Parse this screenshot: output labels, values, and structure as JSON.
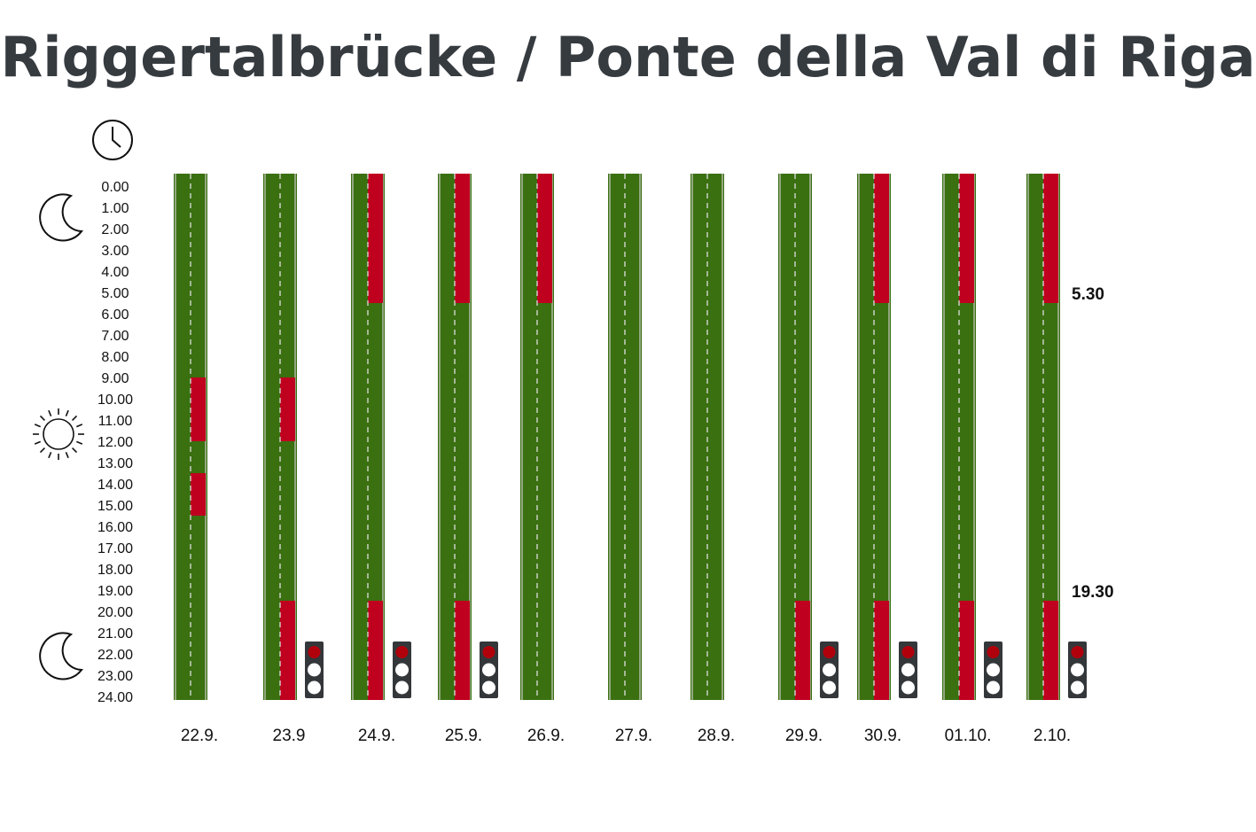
{
  "title": "Riggertalbrücke / Ponte della Val di Riga",
  "hour_labels": [
    "0.00",
    "1.00",
    "2.00",
    "3.00",
    "4.00",
    "5.00",
    "6.00",
    "7.00",
    "8.00",
    "9.00",
    "10.00",
    "11.00",
    "12.00",
    "13.00",
    "14.00",
    "15.00",
    "16.00",
    "17.00",
    "18.00",
    "19.00",
    "20.00",
    "21.00",
    "22.00",
    "23.00",
    "24.00"
  ],
  "icons": [
    "clock-icon",
    "moon-icon",
    "sun-icon",
    "moon-icon"
  ],
  "colors": {
    "open": "#3a7010",
    "closed": "#c0001f",
    "light_body": "#33373a",
    "light_red": "#b0000c"
  },
  "annotations": [
    {
      "text": "5.30",
      "hour": 5.5
    },
    {
      "text": "19.30",
      "hour": 19.5
    }
  ],
  "days": [
    {
      "label": "22.9.",
      "closures": [
        [
          9,
          12
        ],
        [
          13.5,
          15.5
        ]
      ],
      "traffic_light": false
    },
    {
      "label": "23.9",
      "closures": [
        [
          9,
          12
        ],
        [
          19.5,
          24
        ]
      ],
      "traffic_light": true
    },
    {
      "label": "24.9.",
      "closures": [
        [
          0,
          5.5
        ],
        [
          19.5,
          24
        ]
      ],
      "traffic_light": true
    },
    {
      "label": "25.9.",
      "closures": [
        [
          0,
          5.5
        ],
        [
          19.5,
          24
        ]
      ],
      "traffic_light": true
    },
    {
      "label": "26.9.",
      "closures": [
        [
          0,
          5.5
        ]
      ],
      "traffic_light": false
    },
    {
      "label": "27.9.",
      "closures": [],
      "traffic_light": false
    },
    {
      "label": "28.9.",
      "closures": [],
      "traffic_light": false
    },
    {
      "label": "29.9.",
      "closures": [
        [
          19.5,
          24
        ]
      ],
      "traffic_light": true
    },
    {
      "label": "30.9.",
      "closures": [
        [
          0,
          5.5
        ],
        [
          19.5,
          24
        ]
      ],
      "traffic_light": true
    },
    {
      "label": "01.10.",
      "closures": [
        [
          0,
          5.5
        ],
        [
          19.5,
          24
        ]
      ],
      "traffic_light": true
    },
    {
      "label": "2.10.",
      "closures": [
        [
          0,
          5.5
        ],
        [
          19.5,
          24
        ]
      ],
      "traffic_light": true
    }
  ]
}
